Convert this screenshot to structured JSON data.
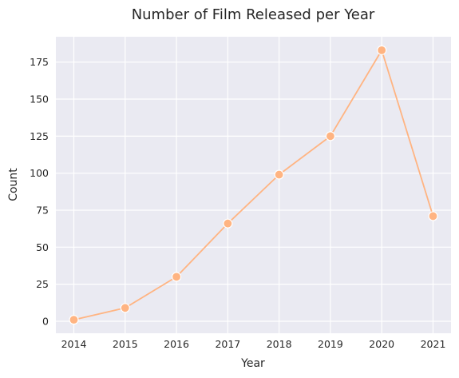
{
  "chart_data": {
    "type": "line",
    "title": "Number of Film Released per Year",
    "xlabel": "Year",
    "ylabel": "Count",
    "x": [
      2014,
      2015,
      2016,
      2017,
      2018,
      2019,
      2020,
      2021
    ],
    "series": [
      {
        "values": [
          1,
          9,
          30,
          66,
          99,
          125,
          183,
          71
        ],
        "color": "#ffb482"
      }
    ],
    "xticks": [
      "2014",
      "2015",
      "2016",
      "2017",
      "2018",
      "2019",
      "2020",
      "2021"
    ],
    "yticks": [
      0,
      25,
      50,
      75,
      100,
      125,
      150,
      175
    ],
    "xlim": [
      2013.65,
      2021.35
    ],
    "ylim": [
      -8.1,
      192.1
    ],
    "grid": true,
    "background_color": "#eaeaf2",
    "grid_color": "#ffffff"
  }
}
